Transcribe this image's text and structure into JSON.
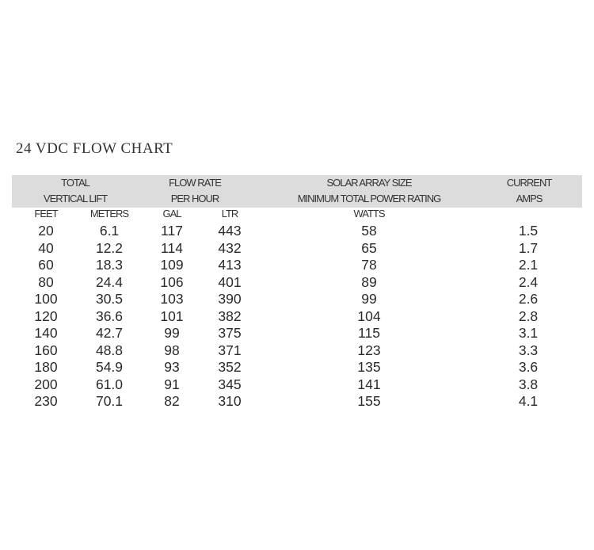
{
  "title": "24 VDC FLOW CHART",
  "headers": {
    "lift_line1": "TOTAL",
    "lift_line2": "VERTICAL LIFT",
    "flow_line1": "FLOW RATE",
    "flow_line2": "PER HOUR",
    "solar_line1": "SOLAR ARRAY SIZE",
    "solar_line2": "MINIMUM TOTAL POWER RATING",
    "current_line1": "CURRENT",
    "current_line2": "AMPS"
  },
  "units": {
    "feet": "FEET",
    "meters": "METERS",
    "gal": "GAL",
    "ltr": "LTR",
    "watts": "WATTS"
  },
  "header_band_color": "#dcdcdc",
  "rows": [
    {
      "feet": "20",
      "meters": "6.1",
      "gal": "117",
      "ltr": "443",
      "watts": "58",
      "amps": "1.5"
    },
    {
      "feet": "40",
      "meters": "12.2",
      "gal": "114",
      "ltr": "432",
      "watts": "65",
      "amps": "1.7"
    },
    {
      "feet": "60",
      "meters": "18.3",
      "gal": "109",
      "ltr": "413",
      "watts": "78",
      "amps": "2.1"
    },
    {
      "feet": "80",
      "meters": "24.4",
      "gal": "106",
      "ltr": "401",
      "watts": "89",
      "amps": "2.4"
    },
    {
      "feet": "100",
      "meters": "30.5",
      "gal": "103",
      "ltr": "390",
      "watts": "99",
      "amps": "2.6"
    },
    {
      "feet": "120",
      "meters": "36.6",
      "gal": "101",
      "ltr": "382",
      "watts": "104",
      "amps": "2.8"
    },
    {
      "feet": "140",
      "meters": "42.7",
      "gal": "99",
      "ltr": "375",
      "watts": "115",
      "amps": "3.1"
    },
    {
      "feet": "160",
      "meters": "48.8",
      "gal": "98",
      "ltr": "371",
      "watts": "123",
      "amps": "3.3"
    },
    {
      "feet": "180",
      "meters": "54.9",
      "gal": "93",
      "ltr": "352",
      "watts": "135",
      "amps": "3.6"
    },
    {
      "feet": "200",
      "meters": "61.0",
      "gal": "91",
      "ltr": "345",
      "watts": "141",
      "amps": "3.8"
    },
    {
      "feet": "230",
      "meters": "70.1",
      "gal": "82",
      "ltr": "310",
      "watts": "155",
      "amps": "4.1"
    }
  ]
}
